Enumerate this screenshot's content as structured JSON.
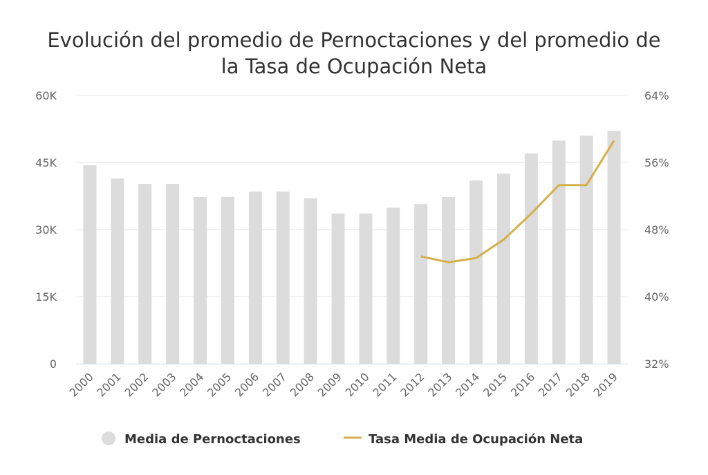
{
  "chart_data": {
    "type": "bar+line",
    "title_line1": "Evolución del promedio de Pernoctaciones y del promedio de",
    "title_line2": "la Tasa de Ocupación Neta",
    "categories": [
      "2000",
      "2001",
      "2002",
      "2003",
      "2004",
      "2005",
      "2006",
      "2007",
      "2008",
      "2009",
      "2010",
      "2011",
      "2012",
      "2013",
      "2014",
      "2015",
      "2016",
      "2017",
      "2018",
      "2019"
    ],
    "left_axis": {
      "min": 0,
      "max": 60000,
      "ticks": [
        0,
        15000,
        30000,
        45000,
        60000
      ],
      "tick_labels": [
        "0",
        "15K",
        "30K",
        "45K",
        "60K"
      ]
    },
    "right_axis": {
      "min": 32,
      "max": 64,
      "ticks": [
        32,
        40,
        48,
        56,
        64
      ],
      "tick_labels": [
        "32%",
        "40%",
        "48%",
        "56%",
        "64%"
      ]
    },
    "series": [
      {
        "name": "Media de Pernoctaciones",
        "type": "bar",
        "axis": "left",
        "color": "#dcdcdc",
        "values": [
          44400,
          41400,
          40200,
          40200,
          37300,
          37300,
          38500,
          38500,
          37000,
          33600,
          33600,
          34900,
          35700,
          37300,
          41000,
          42500,
          47000,
          49900,
          51000,
          52100
        ]
      },
      {
        "name": "Tasa Media de Ocupación Neta",
        "type": "line",
        "axis": "right",
        "color": "#d4af4a",
        "values": [
          null,
          null,
          null,
          null,
          null,
          null,
          null,
          null,
          null,
          null,
          null,
          null,
          44.8,
          44.1,
          44.6,
          46.8,
          49.9,
          53.3,
          53.3,
          58.6
        ]
      }
    ],
    "grid": true,
    "legend": "bottom-center"
  }
}
